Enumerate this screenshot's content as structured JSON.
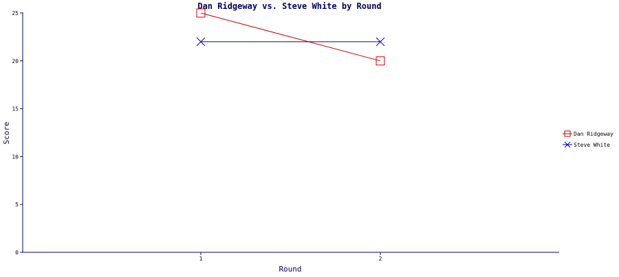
{
  "chart_data": {
    "type": "line",
    "title": "Dan Ridgeway vs. Steve White by Round",
    "xlabel": "Round",
    "ylabel": "Score",
    "x": [
      1,
      2
    ],
    "x_tick_labels": [
      "1",
      "2"
    ],
    "ylim": [
      0,
      25
    ],
    "y_ticks": [
      0,
      5,
      10,
      15,
      20,
      25
    ],
    "grid": false,
    "legend_position": "right",
    "series": [
      {
        "name": "Dan Ridgeway",
        "values": [
          25,
          20
        ],
        "color": "#cc0000",
        "marker": "square"
      },
      {
        "name": "Steve White",
        "values": [
          22,
          22
        ],
        "color": "#0000aa",
        "marker": "x"
      }
    ],
    "axis_color": "#000066"
  }
}
